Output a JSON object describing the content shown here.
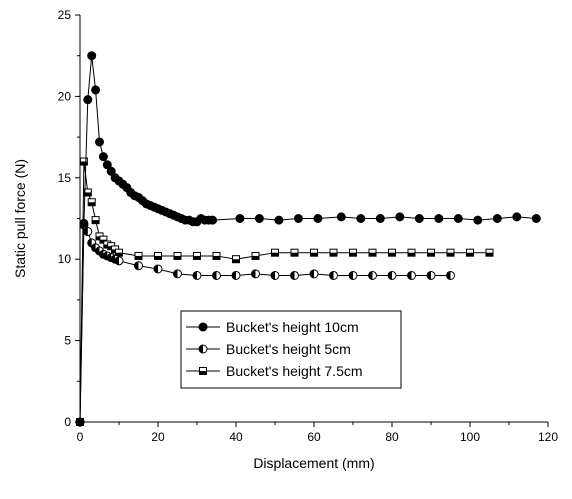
{
  "chart_data": {
    "type": "scatter",
    "xlabel": "Displacement (mm)",
    "ylabel": "Static pull force (N)",
    "xlim": [
      0,
      120
    ],
    "ylim": [
      0,
      25
    ],
    "xticks": [
      0,
      20,
      40,
      60,
      80,
      100,
      120
    ],
    "yticks": [
      0,
      5,
      10,
      15,
      20,
      25
    ],
    "grid": false,
    "legend_position": "lower-center",
    "series": [
      {
        "name": "Bucket's height 10cm",
        "marker": "filled-circle",
        "x": [
          0,
          1,
          2,
          3,
          4,
          5,
          6,
          7,
          8,
          9,
          10,
          11,
          12,
          13,
          14,
          15,
          16,
          17,
          18,
          19,
          20,
          21,
          22,
          23,
          24,
          25,
          26,
          27,
          28,
          29,
          30,
          31,
          32,
          33,
          34,
          41,
          46,
          51,
          56,
          61,
          67,
          72,
          77,
          82,
          87,
          92,
          97,
          102,
          107,
          112,
          117
        ],
        "y": [
          0,
          12.2,
          19.8,
          22.5,
          20.4,
          17.2,
          16.3,
          15.8,
          15.4,
          15.0,
          14.8,
          14.6,
          14.4,
          14.1,
          13.9,
          13.8,
          13.6,
          13.4,
          13.3,
          13.2,
          13.1,
          13.0,
          12.9,
          12.8,
          12.7,
          12.6,
          12.5,
          12.4,
          12.4,
          12.3,
          12.3,
          12.5,
          12.4,
          12.4,
          12.4,
          12.5,
          12.5,
          12.4,
          12.5,
          12.5,
          12.6,
          12.5,
          12.5,
          12.6,
          12.5,
          12.5,
          12.5,
          12.4,
          12.5,
          12.6,
          12.5
        ]
      },
      {
        "name": "Bucket's height 5cm",
        "marker": "half-filled-circle",
        "x": [
          0,
          1,
          2,
          3,
          4,
          5,
          6,
          7,
          8,
          9,
          10,
          15,
          20,
          25,
          30,
          35,
          40,
          45,
          50,
          55,
          60,
          65,
          70,
          75,
          80,
          85,
          90,
          95
        ],
        "y": [
          0,
          12.1,
          11.7,
          11.0,
          10.7,
          10.5,
          10.3,
          10.2,
          10.1,
          10.0,
          9.9,
          9.6,
          9.4,
          9.1,
          9.0,
          9.0,
          9.0,
          9.1,
          9.0,
          9.0,
          9.1,
          9.0,
          9.0,
          9.0,
          9.0,
          9.0,
          9.0,
          9.0
        ]
      },
      {
        "name": "Bucket's height 7.5cm",
        "marker": "half-filled-square",
        "x": [
          0,
          1,
          2,
          3,
          4,
          5,
          6,
          7,
          8,
          9,
          10,
          15,
          20,
          25,
          30,
          35,
          40,
          45,
          50,
          55,
          60,
          65,
          70,
          75,
          80,
          85,
          90,
          95,
          100,
          105
        ],
        "y": [
          0,
          16.0,
          14.1,
          13.5,
          12.4,
          11.4,
          11.2,
          10.9,
          10.8,
          10.6,
          10.4,
          10.2,
          10.2,
          10.2,
          10.2,
          10.2,
          10.0,
          10.2,
          10.4,
          10.4,
          10.4,
          10.4,
          10.4,
          10.4,
          10.4,
          10.4,
          10.4,
          10.4,
          10.4,
          10.4
        ]
      }
    ]
  }
}
